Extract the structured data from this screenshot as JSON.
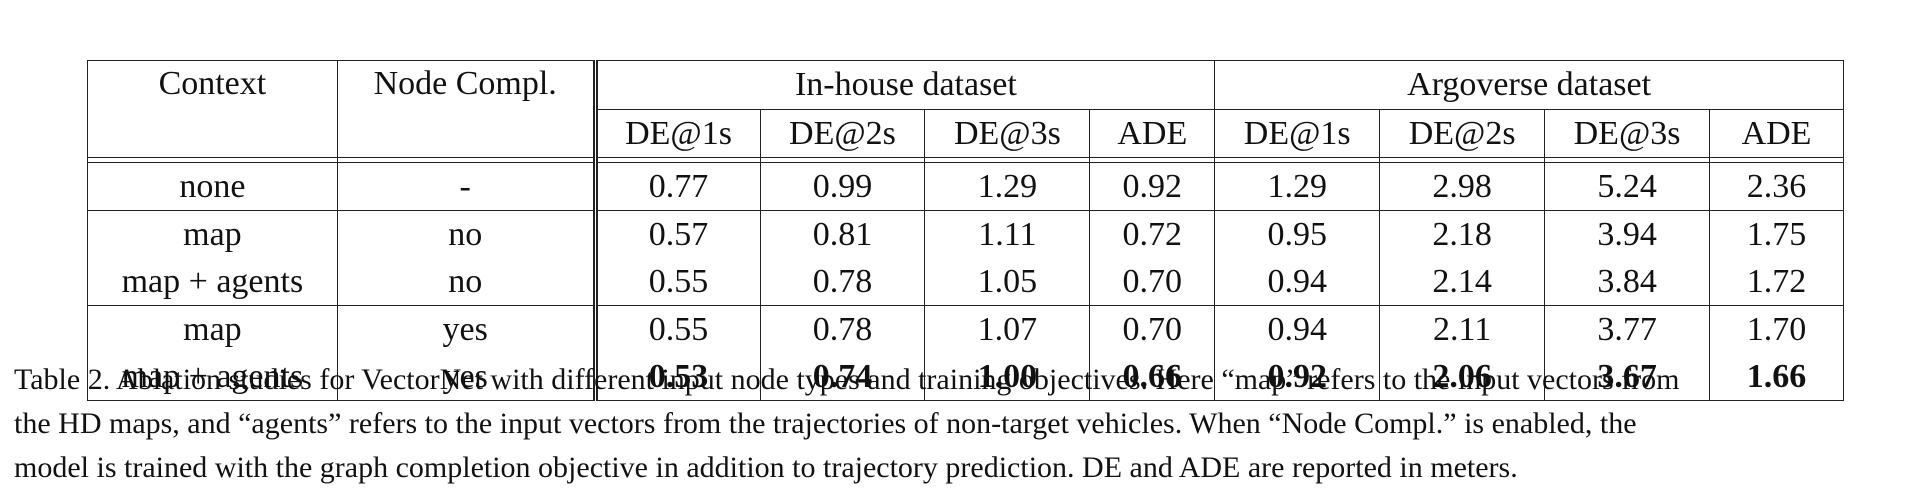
{
  "table": {
    "header": {
      "context": "Context",
      "node_compl": "Node Compl.",
      "inhouse": "In-house dataset",
      "argoverse": "Argoverse dataset",
      "metrics": [
        "DE@1s",
        "DE@2s",
        "DE@3s",
        "ADE",
        "DE@1s",
        "DE@2s",
        "DE@3s",
        "ADE"
      ]
    },
    "rows": [
      {
        "context": "none",
        "node": "-",
        "values": [
          "0.77",
          "0.99",
          "1.29",
          "0.92",
          "1.29",
          "2.98",
          "5.24",
          "2.36"
        ]
      },
      {
        "context": "map",
        "node": "no",
        "values": [
          "0.57",
          "0.81",
          "1.11",
          "0.72",
          "0.95",
          "2.18",
          "3.94",
          "1.75"
        ]
      },
      {
        "context": "map + agents",
        "node": "no",
        "values": [
          "0.55",
          "0.78",
          "1.05",
          "0.70",
          "0.94",
          "2.14",
          "3.84",
          "1.72"
        ]
      },
      {
        "context": "map",
        "node": "yes",
        "values": [
          "0.55",
          "0.78",
          "1.07",
          "0.70",
          "0.94",
          "2.11",
          "3.77",
          "1.70"
        ]
      },
      {
        "context": "map + agents",
        "node": "yes",
        "values": [
          "0.53",
          "0.74",
          "1.00",
          "0.66",
          "0.92",
          "2.06",
          "3.67",
          "1.66"
        ]
      }
    ]
  },
  "caption": {
    "line1": "Table 2. Ablation studies for VectorNet with different input node types and training objectives. Here “map” refers to the input vectors from",
    "line2": "the HD maps, and “agents” refers to the input vectors from the trajectories of non-target vehicles. When “Node Compl.” is enabled, the",
    "line3": "model is trained with the graph completion objective in addition to trajectory prediction. DE and ADE are reported in meters."
  }
}
